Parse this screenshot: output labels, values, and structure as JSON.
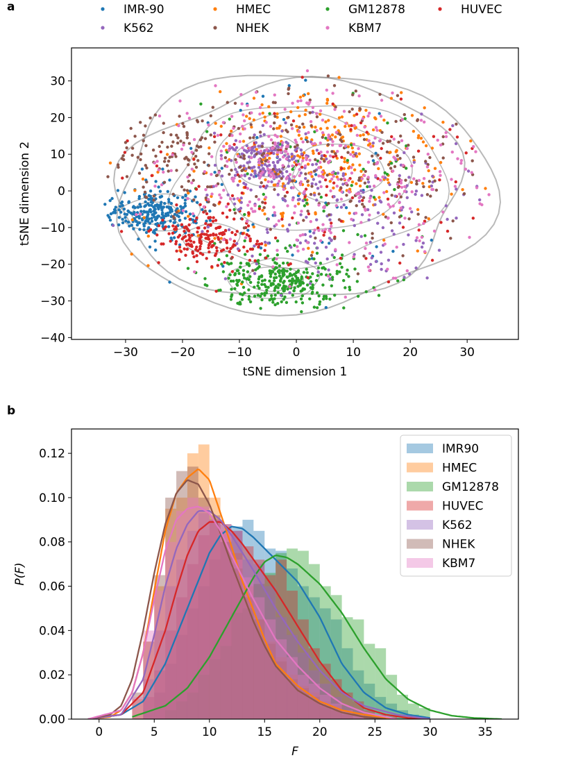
{
  "chart_data": [
    {
      "panel": "a",
      "type": "scatter",
      "xlabel": "tSNE dimension 1",
      "ylabel": "tSNE dimension 2",
      "xlim": [
        -39.5,
        39
      ],
      "ylim": [
        -40.5,
        39
      ],
      "xticks": [
        -30,
        -20,
        -10,
        0,
        10,
        20,
        30
      ],
      "yticks": [
        -40,
        -30,
        -20,
        -10,
        0,
        10,
        20,
        30
      ],
      "xtick_labels": [
        "−30",
        "−20",
        "−10",
        "0",
        "10",
        "20",
        "30"
      ],
      "ytick_labels": [
        "−40",
        "−30",
        "−20",
        "−10",
        "0",
        "10",
        "20",
        "30"
      ],
      "legend_position": "top, above axes, 4 columns",
      "series": [
        {
          "name": "IMR-90",
          "color": "#1f77b4",
          "n": 320,
          "clusters": [
            {
              "cx": -25,
              "cy": -6,
              "sx": 4.2,
              "sy": 3.2,
              "w": 0.8
            },
            {
              "cx": -5,
              "cy": 0,
              "sx": 15,
              "sy": 14,
              "w": 0.2
            }
          ]
        },
        {
          "name": "HMEC",
          "color": "#ff7f0e",
          "n": 300,
          "clusters": [
            {
              "cx": 6,
              "cy": 12,
              "sx": 9,
              "sy": 8,
              "w": 0.6
            },
            {
              "cx": 0,
              "cy": 0,
              "sx": 16,
              "sy": 14,
              "w": 0.4
            }
          ]
        },
        {
          "name": "GM12878",
          "color": "#2ca02c",
          "n": 360,
          "clusters": [
            {
              "cx": -3,
              "cy": -25,
              "sx": 6.5,
              "sy": 3.8,
              "w": 0.85
            },
            {
              "cx": 5,
              "cy": 0,
              "sx": 16,
              "sy": 14,
              "w": 0.15
            }
          ]
        },
        {
          "name": "HUVEC",
          "color": "#d62728",
          "n": 300,
          "clusters": [
            {
              "cx": -15,
              "cy": -13,
              "sx": 4.5,
              "sy": 3.5,
              "w": 0.6
            },
            {
              "cx": 0,
              "cy": 0,
              "sx": 16,
              "sy": 14,
              "w": 0.4
            }
          ]
        },
        {
          "name": "K562",
          "color": "#9467bd",
          "n": 360,
          "clusters": [
            {
              "cx": -5,
              "cy": 8,
              "sx": 3.5,
              "sy": 4,
              "w": 0.4
            },
            {
              "cx": 10,
              "cy": -5,
              "sx": 12,
              "sy": 12,
              "w": 0.6
            }
          ]
        },
        {
          "name": "NHEK",
          "color": "#8c564b",
          "n": 320,
          "clusters": [
            {
              "cx": -22,
              "cy": 10,
              "sx": 7,
              "sy": 6,
              "w": 0.35
            },
            {
              "cx": 3,
              "cy": 8,
              "sx": 15,
              "sy": 13,
              "w": 0.65
            }
          ]
        },
        {
          "name": "KBM7",
          "color": "#e377c2",
          "n": 380,
          "clusters": [
            {
              "cx": 8,
              "cy": 3,
              "sx": 13,
              "sy": 13,
              "w": 0.8
            },
            {
              "cx": -8,
              "cy": 10,
              "sx": 8,
              "sy": 8,
              "w": 0.2
            }
          ]
        }
      ]
    },
    {
      "panel": "b",
      "type": "histogram-kde",
      "xlabel": "F",
      "ylabel": "P(F)",
      "xlim": [
        -2.5,
        38
      ],
      "ylim": [
        0,
        0.131
      ],
      "xticks": [
        0,
        5,
        10,
        15,
        20,
        25,
        30,
        35
      ],
      "yticks": [
        0.0,
        0.02,
        0.04,
        0.06,
        0.08,
        0.1,
        0.12
      ],
      "xtick_labels": [
        "0",
        "5",
        "10",
        "15",
        "20",
        "25",
        "30",
        "35"
      ],
      "ytick_labels": [
        "0.00",
        "0.02",
        "0.04",
        "0.06",
        "0.08",
        "0.10",
        "0.12"
      ],
      "legend_position": "top-right",
      "series": [
        {
          "name": "IMR90",
          "color": "#1f77b4",
          "kde_x": [
            -1,
            2,
            4,
            6,
            8,
            10,
            11,
            12,
            13,
            14,
            16,
            18,
            20,
            22,
            24,
            26,
            28,
            30
          ],
          "kde_y": [
            0,
            0.002,
            0.008,
            0.025,
            0.05,
            0.075,
            0.083,
            0.087,
            0.086,
            0.082,
            0.072,
            0.062,
            0.046,
            0.025,
            0.012,
            0.005,
            0.002,
            0.0005
          ],
          "hist_x": [
            4,
            5,
            6,
            7,
            8,
            9,
            10,
            11,
            12,
            13,
            14,
            15,
            16,
            17,
            18,
            19,
            20,
            21,
            22,
            23,
            24,
            25,
            26,
            27,
            28
          ],
          "hist_y": [
            0.004,
            0.012,
            0.025,
            0.038,
            0.05,
            0.06,
            0.072,
            0.08,
            0.087,
            0.09,
            0.085,
            0.077,
            0.076,
            0.068,
            0.06,
            0.055,
            0.05,
            0.045,
            0.032,
            0.022,
            0.016,
            0.01,
            0.007,
            0.004,
            0.002
          ]
        },
        {
          "name": "HMEC",
          "color": "#ff7f0e",
          "kde_x": [
            -1,
            1,
            2,
            3,
            4,
            5,
            6,
            7,
            8,
            9,
            10,
            11,
            12,
            13,
            14,
            15,
            16,
            18,
            20,
            22,
            24,
            27
          ],
          "kde_y": [
            0,
            0.001,
            0.004,
            0.012,
            0.03,
            0.058,
            0.085,
            0.102,
            0.109,
            0.113,
            0.108,
            0.093,
            0.078,
            0.062,
            0.049,
            0.036,
            0.025,
            0.015,
            0.008,
            0.004,
            0.002,
            0
          ],
          "hist_x": [
            3,
            4,
            5,
            6,
            7,
            8,
            9,
            10,
            11,
            12,
            13,
            14,
            15,
            16,
            17,
            18,
            19,
            20,
            21,
            22,
            23,
            24
          ],
          "hist_y": [
            0.009,
            0.035,
            0.06,
            0.095,
            0.1,
            0.12,
            0.124,
            0.1,
            0.085,
            0.075,
            0.06,
            0.045,
            0.035,
            0.028,
            0.02,
            0.015,
            0.012,
            0.008,
            0.006,
            0.004,
            0.003,
            0.002
          ]
        },
        {
          "name": "GM12878",
          "color": "#2ca02c",
          "kde_x": [
            3,
            6,
            8,
            10,
            12,
            14,
            15,
            16,
            17,
            18,
            20,
            22,
            24,
            26,
            28,
            30,
            32,
            34,
            36.5
          ],
          "kde_y": [
            0.001,
            0.006,
            0.014,
            0.028,
            0.046,
            0.064,
            0.071,
            0.074,
            0.073,
            0.07,
            0.061,
            0.048,
            0.032,
            0.018,
            0.009,
            0.004,
            0.0015,
            0.0005,
            0
          ],
          "hist_x": [
            6,
            7,
            8,
            9,
            10,
            11,
            12,
            13,
            14,
            15,
            16,
            17,
            18,
            19,
            20,
            21,
            22,
            23,
            24,
            25,
            26,
            27,
            28,
            29
          ],
          "hist_y": [
            0.004,
            0.008,
            0.012,
            0.02,
            0.027,
            0.033,
            0.048,
            0.05,
            0.061,
            0.066,
            0.075,
            0.077,
            0.076,
            0.07,
            0.06,
            0.056,
            0.046,
            0.045,
            0.034,
            0.032,
            0.02,
            0.011,
            0.007,
            0.005
          ]
        },
        {
          "name": "HUVEC",
          "color": "#d62728",
          "kde_x": [
            -1,
            2,
            4,
            6,
            7,
            8,
            9,
            10,
            11,
            12,
            13,
            14,
            16,
            18,
            20,
            22,
            24,
            26,
            28,
            30
          ],
          "kde_y": [
            0,
            0.002,
            0.012,
            0.04,
            0.058,
            0.074,
            0.085,
            0.089,
            0.089,
            0.085,
            0.079,
            0.072,
            0.058,
            0.042,
            0.026,
            0.013,
            0.005,
            0.002,
            0.0005,
            0
          ],
          "hist_x": [
            4,
            5,
            6,
            7,
            8,
            9,
            10,
            11,
            12,
            13,
            14,
            15,
            16,
            17,
            18,
            19,
            20,
            21,
            22,
            23,
            24,
            25,
            26
          ],
          "hist_y": [
            0.01,
            0.022,
            0.04,
            0.055,
            0.07,
            0.083,
            0.09,
            0.088,
            0.085,
            0.078,
            0.072,
            0.065,
            0.072,
            0.058,
            0.045,
            0.032,
            0.025,
            0.018,
            0.012,
            0.008,
            0.004,
            0.002,
            0.001
          ]
        },
        {
          "name": "K562",
          "color": "#9467bd",
          "kde_x": [
            -1,
            2,
            4,
            5,
            6,
            7,
            8,
            9,
            10,
            11,
            12,
            13,
            14,
            16,
            18,
            20,
            22,
            24,
            27,
            30
          ],
          "kde_y": [
            0,
            0.002,
            0.018,
            0.038,
            0.06,
            0.077,
            0.088,
            0.094,
            0.094,
            0.09,
            0.083,
            0.075,
            0.067,
            0.05,
            0.035,
            0.022,
            0.012,
            0.006,
            0.002,
            0
          ],
          "hist_x": [
            4,
            5,
            6,
            7,
            8,
            9,
            10,
            11,
            12,
            13,
            14,
            15,
            16,
            17,
            18,
            19,
            20,
            21,
            22,
            23,
            24
          ],
          "hist_y": [
            0.018,
            0.04,
            0.06,
            0.072,
            0.085,
            0.093,
            0.09,
            0.088,
            0.085,
            0.072,
            0.07,
            0.06,
            0.046,
            0.038,
            0.03,
            0.022,
            0.016,
            0.01,
            0.006,
            0.004,
            0.002
          ]
        },
        {
          "name": "NHEK",
          "color": "#8c564b",
          "kde_x": [
            -1,
            1,
            2,
            3,
            4,
            5,
            6,
            7,
            8,
            9,
            10,
            11,
            12,
            13,
            14,
            15,
            16,
            18,
            20,
            22,
            24,
            26
          ],
          "kde_y": [
            0,
            0.002,
            0.006,
            0.018,
            0.04,
            0.066,
            0.088,
            0.102,
            0.108,
            0.106,
            0.097,
            0.084,
            0.07,
            0.057,
            0.044,
            0.033,
            0.024,
            0.013,
            0.007,
            0.003,
            0.001,
            0
          ],
          "hist_x": [
            3,
            4,
            5,
            6,
            7,
            8,
            9,
            10,
            11,
            12,
            13,
            14,
            15,
            16,
            17,
            18,
            19,
            20,
            21,
            22
          ],
          "hist_y": [
            0.012,
            0.035,
            0.065,
            0.1,
            0.112,
            0.114,
            0.1,
            0.092,
            0.08,
            0.068,
            0.055,
            0.045,
            0.034,
            0.026,
            0.018,
            0.014,
            0.01,
            0.006,
            0.004,
            0.002
          ]
        },
        {
          "name": "KBM7",
          "color": "#e377c2",
          "kde_x": [
            -1,
            2,
            3,
            4,
            5,
            6,
            7,
            8,
            9,
            10,
            11,
            12,
            13,
            14,
            16,
            18,
            20,
            22,
            24,
            27
          ],
          "kde_y": [
            0,
            0.004,
            0.012,
            0.03,
            0.054,
            0.076,
            0.09,
            0.095,
            0.096,
            0.093,
            0.085,
            0.074,
            0.064,
            0.054,
            0.036,
            0.024,
            0.014,
            0.007,
            0.003,
            0
          ],
          "hist_x": [
            3,
            4,
            5,
            6,
            7,
            8,
            9,
            10,
            11,
            12,
            13,
            14,
            15,
            16,
            17,
            18,
            19,
            20,
            21,
            22,
            23
          ],
          "hist_y": [
            0.01,
            0.04,
            0.058,
            0.08,
            0.094,
            0.1,
            0.096,
            0.09,
            0.085,
            0.072,
            0.064,
            0.055,
            0.045,
            0.036,
            0.028,
            0.02,
            0.016,
            0.011,
            0.007,
            0.004,
            0.002
          ]
        }
      ]
    }
  ],
  "panels": {
    "a_label": "a",
    "b_label": "b"
  }
}
